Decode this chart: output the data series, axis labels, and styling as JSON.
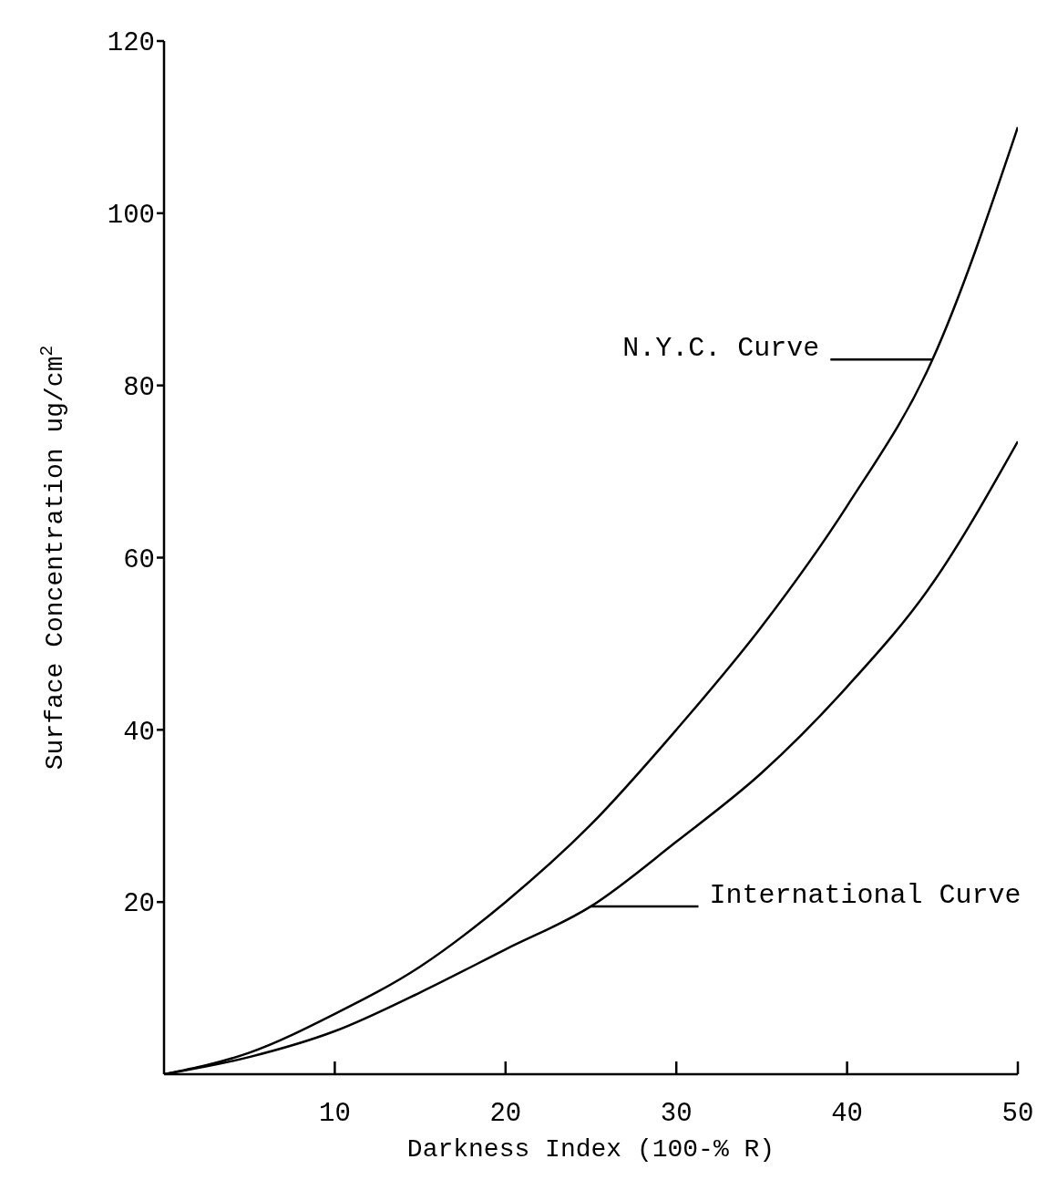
{
  "chart_data": {
    "type": "line",
    "xlabel": "Darkness Index (100-% R)",
    "ylabel": "Surface Concentration ug/cm$^{2}$",
    "x": [
      0,
      5,
      10,
      15,
      20,
      25,
      30,
      35,
      40,
      45,
      50
    ],
    "series": [
      {
        "color": "#000000",
        "values": [
          0,
          2.5,
          7,
          12.5,
          20,
          29,
          40,
          52,
          66,
          83,
          110
        ]
      },
      {
        "color": "#000000",
        "values": [
          0,
          2,
          5,
          9.5,
          14.5,
          19.5,
          27,
          35,
          45,
          57,
          73.5
        ]
      }
    ],
    "xlim": [
      0,
      50
    ],
    "xticks": [
      10,
      20,
      30,
      40,
      50
    ],
    "ylim": [
      0,
      120
    ],
    "yticks": [
      20,
      40,
      60,
      80,
      100,
      120
    ],
    "grid": false,
    "legend": false,
    "marker": "none",
    "line_style": "solid",
    "annotations": [
      "N.Y.C. Curve",
      "International Curve"
    ]
  }
}
